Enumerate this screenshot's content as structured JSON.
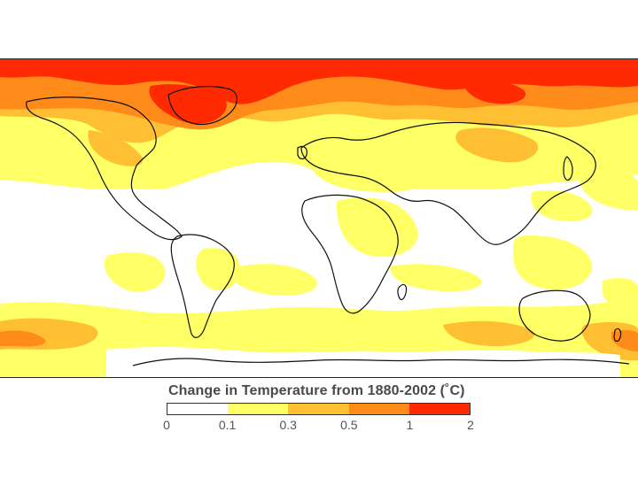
{
  "map": {
    "title": "Change in Temperature from 1880-2002 (˚C)",
    "legend": {
      "bins": [
        {
          "from": "0",
          "to": "0.1",
          "color": "#ffffff"
        },
        {
          "from": "0.1",
          "to": "0.3",
          "color": "#ffff66"
        },
        {
          "from": "0.3",
          "to": "0.5",
          "color": "#ffbf33"
        },
        {
          "from": "0.5",
          "to": "1",
          "color": "#ff8c1a"
        },
        {
          "from": "1",
          "to": "2",
          "color": "#ff2a00"
        }
      ],
      "tick_labels": [
        "0",
        "0.1",
        "0.3",
        "0.5",
        "1",
        "2"
      ]
    },
    "colors": {
      "coastline": "#111111",
      "background": "#ffffff"
    }
  }
}
